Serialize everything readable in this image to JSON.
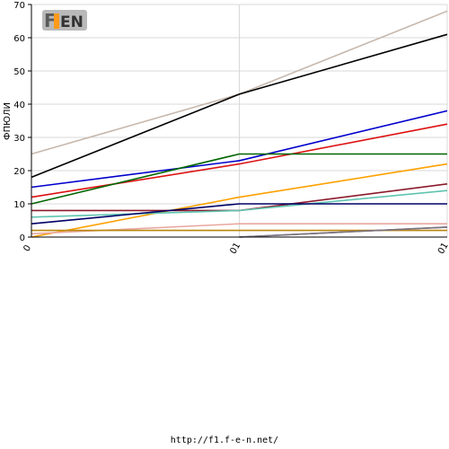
{
  "footer_url": "http://f1.f-e-n.net/",
  "logo_text": "F1 FEN",
  "chart_data": {
    "type": "line",
    "title": "",
    "xlabel": "",
    "ylabel": "ФПЮЛИ",
    "x_categories": [
      "0",
      "01",
      "01"
    ],
    "ylim": [
      0,
      70
    ],
    "yticks": [
      0,
      10,
      20,
      30,
      40,
      50,
      60,
      70
    ],
    "grid": true,
    "series": [
      {
        "color": "#c7b8ad",
        "values": [
          25,
          43,
          68
        ]
      },
      {
        "color": "#000000",
        "values": [
          18,
          43,
          61
        ]
      },
      {
        "color": "#0000cc",
        "values": [
          15,
          23,
          38
        ]
      },
      {
        "color": "#dd1111",
        "values": [
          12,
          22,
          34
        ]
      },
      {
        "color": "#006600",
        "values": [
          10,
          25,
          25
        ]
      },
      {
        "color": "#ffa000",
        "values": [
          0,
          12,
          22
        ]
      },
      {
        "color": "#8b1a2b",
        "values": [
          8,
          8,
          16
        ]
      },
      {
        "color": "#5fc4b0",
        "values": [
          6,
          8,
          14
        ]
      },
      {
        "color": "#000066",
        "values": [
          4,
          10,
          10
        ]
      },
      {
        "color": "#e8a8a0",
        "values": [
          1,
          4,
          4
        ]
      },
      {
        "color": "#b8860b",
        "values": [
          2,
          2,
          2
        ]
      },
      {
        "color": "#9933cc",
        "values": [
          null,
          0,
          3
        ]
      },
      {
        "color": "#777777",
        "values": [
          null,
          0,
          3
        ]
      }
    ]
  }
}
